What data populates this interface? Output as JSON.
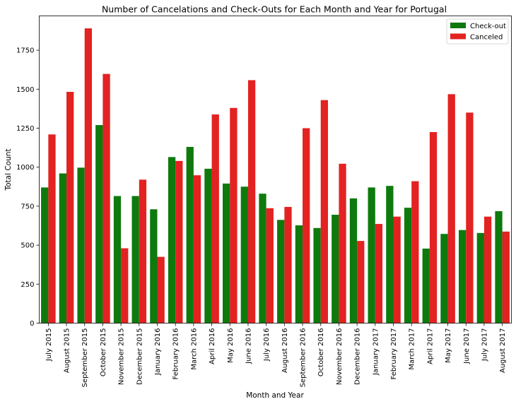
{
  "chart_data": {
    "type": "bar",
    "title": "Number of Cancelations and Check-Outs  for Each Month and Year for Portugal",
    "xlabel": "Month and Year",
    "ylabel": "Total Count",
    "ylim": [
      0,
      1970
    ],
    "yticks": [
      0,
      250,
      500,
      750,
      1000,
      1250,
      1500,
      1750
    ],
    "grid": false,
    "legend_position": "top-right",
    "categories": [
      "July  2015",
      "August  2015",
      "September  2015",
      "October  2015",
      "November  2015",
      "December  2015",
      "January  2016",
      "February  2016",
      "March  2016",
      "April  2016",
      "May  2016",
      "June  2016",
      "July  2016",
      "August  2016",
      "September  2016",
      "October  2016",
      "November  2016",
      "December  2016",
      "January  2017",
      "February  2017",
      "March  2017",
      "April  2017",
      "May  2017",
      "June  2017",
      "July  2017",
      "August  2017"
    ],
    "series": [
      {
        "name": "Check-out",
        "color": "#0e7a0d",
        "values": [
          870,
          960,
          997,
          1270,
          815,
          815,
          730,
          1065,
          1130,
          990,
          895,
          875,
          830,
          662,
          627,
          610,
          695,
          800,
          870,
          880,
          740,
          478,
          572,
          597,
          578,
          718
        ]
      },
      {
        "name": "Canceled",
        "color": "#e32222",
        "values": [
          1210,
          1483,
          1890,
          1598,
          480,
          920,
          425,
          1040,
          948,
          1338,
          1380,
          1558,
          737,
          745,
          1250,
          1430,
          1022,
          527,
          636,
          683,
          910,
          1225,
          1468,
          1350,
          683,
          587
        ]
      }
    ]
  }
}
